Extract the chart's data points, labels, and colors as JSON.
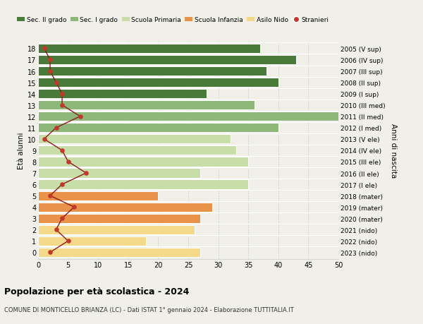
{
  "ages": [
    0,
    1,
    2,
    3,
    4,
    5,
    6,
    7,
    8,
    9,
    10,
    11,
    12,
    13,
    14,
    15,
    16,
    17,
    18
  ],
  "years": [
    "2023 (nido)",
    "2022 (nido)",
    "2021 (nido)",
    "2020 (mater)",
    "2019 (mater)",
    "2018 (mater)",
    "2017 (I ele)",
    "2016 (II ele)",
    "2015 (III ele)",
    "2014 (IV ele)",
    "2013 (V ele)",
    "2012 (I med)",
    "2011 (II med)",
    "2010 (III med)",
    "2009 (I sup)",
    "2008 (II sup)",
    "2007 (III sup)",
    "2006 (IV sup)",
    "2005 (V sup)"
  ],
  "bar_values": [
    27,
    18,
    26,
    27,
    29,
    20,
    35,
    27,
    35,
    33,
    32,
    40,
    50,
    36,
    28,
    40,
    38,
    43,
    37
  ],
  "stranieri": [
    2,
    5,
    3,
    4,
    6,
    2,
    4,
    8,
    5,
    4,
    1,
    3,
    7,
    4,
    4,
    3,
    2,
    2,
    1
  ],
  "bar_colors": [
    "#f5d98a",
    "#f5d98a",
    "#f5d98a",
    "#e8924a",
    "#e8924a",
    "#e8924a",
    "#c8dea8",
    "#c8dea8",
    "#c8dea8",
    "#c8dea8",
    "#c8dea8",
    "#8db87a",
    "#8db87a",
    "#8db87a",
    "#4a7a3a",
    "#4a7a3a",
    "#4a7a3a",
    "#4a7a3a",
    "#4a7a3a"
  ],
  "legend_labels": [
    "Sec. II grado",
    "Sec. I grado",
    "Scuola Primaria",
    "Scuola Infanzia",
    "Asilo Nido",
    "Stranieri"
  ],
  "legend_colors": [
    "#4a7a3a",
    "#8db87a",
    "#c8dea8",
    "#e8924a",
    "#f5d98a",
    "#c0392b"
  ],
  "stranieri_color": "#c0392b",
  "stranieri_line_color": "#8b1a1a",
  "ylabel_left": "Età alunni",
  "ylabel_right": "Anni di nascita",
  "title": "Popolazione per età scolastica - 2024",
  "subtitle": "COMUNE DI MONTICELLO BRIANZA (LC) - Dati ISTAT 1° gennaio 2024 - Elaborazione TUTTITALIA.IT",
  "xlim": [
    0,
    50
  ],
  "xticks": [
    0,
    5,
    10,
    15,
    20,
    25,
    30,
    35,
    40,
    45,
    50
  ],
  "bg_color": "#f0f0e8",
  "bar_height": 0.82
}
